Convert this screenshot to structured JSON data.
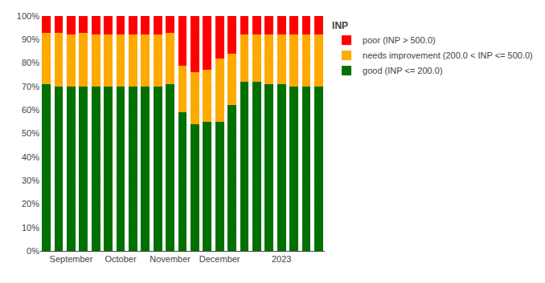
{
  "chart_data": {
    "type": "bar",
    "title": "INP",
    "categories": [
      null,
      null,
      "September",
      null,
      null,
      null,
      "October",
      null,
      null,
      null,
      "November",
      null,
      null,
      null,
      "December",
      null,
      null,
      null,
      null,
      "2023",
      null,
      null,
      null
    ],
    "series": [
      {
        "name": "good (INP <= 200.0)",
        "color": "#007000",
        "values": [
          71,
          70,
          70,
          70,
          70,
          70,
          70,
          70,
          70,
          70,
          71,
          59,
          54,
          55,
          55,
          62,
          72,
          72,
          71,
          71,
          70,
          70,
          70
        ]
      },
      {
        "name": "needs improvement (200.0 < INP <= 500.0)",
        "color": "#ffaa00",
        "values": [
          22,
          23,
          22,
          23,
          22,
          22,
          22,
          22,
          22,
          22,
          22,
          20,
          22,
          22,
          27,
          22,
          20,
          20,
          21,
          21,
          22,
          22,
          22
        ]
      },
      {
        "name": "poor (INP > 500.0)",
        "color": "#ff0000",
        "values": [
          7,
          7,
          8,
          7,
          8,
          8,
          8,
          8,
          8,
          8,
          7,
          21,
          24,
          23,
          18,
          16,
          8,
          8,
          8,
          8,
          8,
          8,
          8
        ]
      }
    ],
    "stacked": true,
    "ylim": [
      0,
      100
    ],
    "yticks": [
      {
        "value": 0,
        "label": "0%"
      },
      {
        "value": 10,
        "label": "10%"
      },
      {
        "value": 20,
        "label": "20%"
      },
      {
        "value": 30,
        "label": "30%"
      },
      {
        "value": 40,
        "label": "40%"
      },
      {
        "value": 50,
        "label": "50%"
      },
      {
        "value": 60,
        "label": "60%"
      },
      {
        "value": 70,
        "label": "70%"
      },
      {
        "value": 80,
        "label": "80%"
      },
      {
        "value": 90,
        "label": "90%"
      },
      {
        "value": 100,
        "label": "100%"
      }
    ],
    "grid": true,
    "legend": "right"
  }
}
